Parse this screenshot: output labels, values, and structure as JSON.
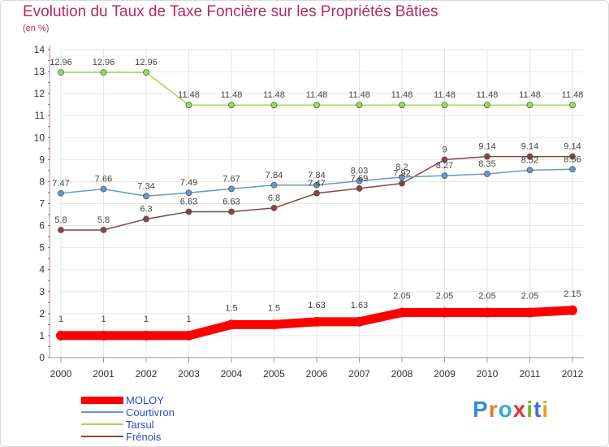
{
  "title": "Evolution du Taux de Taxe Foncière sur les Propriétés Bâties",
  "subtitle": "(en %)",
  "logo": {
    "text": "Proxiti",
    "colors": [
      "#2d8fd6",
      "#e37f1c",
      "#36a8d8",
      "#d9343a",
      "#7ab529",
      "#3c77c9",
      "#e6a21e"
    ]
  },
  "chart_data": {
    "type": "line",
    "title": "Evolution du Taux de Taxe Foncière sur les Propriétés Bâties",
    "ylabel": "(en %)",
    "xlabel": "",
    "x": [
      "2000",
      "2001",
      "2002",
      "2003",
      "2004",
      "2005",
      "2006",
      "2007",
      "2008",
      "2009",
      "2010",
      "2011",
      "2012"
    ],
    "ylim": [
      0,
      14
    ],
    "yticks": [
      0,
      1,
      2,
      3,
      4,
      5,
      6,
      7,
      8,
      9,
      10,
      11,
      12,
      13,
      14
    ],
    "grid": true,
    "legend_position": "bottom-left",
    "series": [
      {
        "name": "MOLOY",
        "color": "#ff0000",
        "values": [
          1,
          1,
          1,
          1,
          1.5,
          1.5,
          1.63,
          1.63,
          2.05,
          2.05,
          2.05,
          2.05,
          2.15
        ],
        "labels": [
          "1",
          "1",
          "1",
          "1",
          "1.5",
          "1.5",
          "1.63",
          "1.63",
          "2.05",
          "2.05",
          "2.05",
          "2.05",
          "2.15"
        ]
      },
      {
        "name": "Courtivron",
        "color": "#6699cc",
        "values": [
          7.47,
          7.66,
          7.34,
          7.49,
          7.67,
          7.84,
          7.84,
          8.03,
          8.2,
          8.27,
          8.35,
          8.52,
          8.56
        ],
        "labels": [
          "7.47",
          "7.66",
          "7.34",
          "7.49",
          "7.67",
          "7.84",
          "7.84",
          "8.03",
          "8.2",
          "8.27",
          "8.35",
          "8.52",
          "8.56"
        ]
      },
      {
        "name": "Tarsul",
        "color": "#99dd55",
        "values": [
          12.96,
          12.96,
          12.96,
          11.48,
          11.48,
          11.48,
          11.48,
          11.48,
          11.48,
          11.48,
          11.48,
          11.48,
          11.48
        ],
        "labels": [
          "12.96",
          "12.96",
          "12.96",
          "11.48",
          "11.48",
          "11.48",
          "11.48",
          "11.48",
          "11.48",
          "11.48",
          "11.48",
          "11.48",
          "11.48"
        ]
      },
      {
        "name": "Frénois",
        "color": "#884444",
        "values": [
          5.8,
          5.8,
          6.3,
          6.63,
          6.63,
          6.8,
          7.47,
          7.69,
          7.92,
          9,
          9.14,
          9.14,
          9.14
        ],
        "labels": [
          "5.8",
          "5.8",
          "6.3",
          "6.63",
          "6.63",
          "6.8",
          "7.47",
          "7.69",
          "7.92",
          "9",
          "9.14",
          "9.14",
          "9.14"
        ]
      }
    ]
  }
}
